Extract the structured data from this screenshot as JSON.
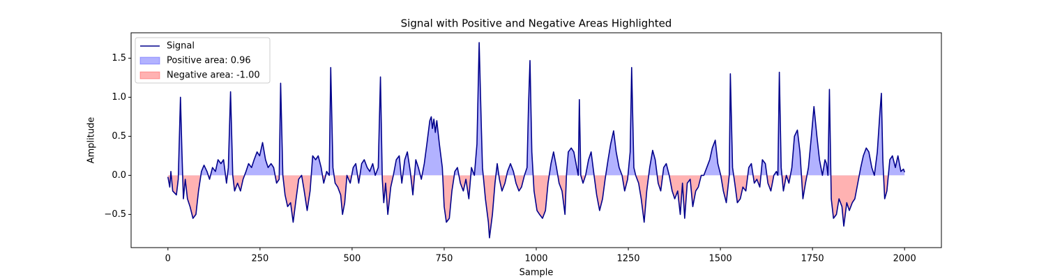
{
  "chart_data": {
    "type": "area_line",
    "title": "Signal with Positive and Negative Areas Highlighted",
    "x_label": "Sample",
    "y_label": "Amplitude",
    "x": [
      0,
      5,
      8,
      13,
      23,
      28,
      34,
      38,
      42,
      47,
      53,
      60,
      68,
      76,
      83,
      91,
      98,
      106,
      113,
      121,
      129,
      136,
      144,
      151,
      159,
      164,
      170,
      176,
      181,
      189,
      197,
      204,
      212,
      219,
      227,
      234,
      242,
      249,
      257,
      265,
      272,
      280,
      287,
      295,
      302,
      306,
      312,
      318,
      325,
      333,
      340,
      348,
      355,
      363,
      370,
      378,
      386,
      393,
      401,
      408,
      416,
      423,
      431,
      438,
      442,
      448,
      454,
      461,
      469,
      474,
      480,
      486,
      495,
      503,
      510,
      518,
      526,
      533,
      541,
      548,
      556,
      563,
      571,
      577,
      582,
      586,
      591,
      597,
      605,
      612,
      620,
      628,
      635,
      643,
      650,
      658,
      665,
      673,
      680,
      688,
      696,
      703,
      711,
      715,
      718,
      722,
      726,
      730,
      737,
      745,
      750,
      756,
      764,
      771,
      779,
      786,
      794,
      802,
      809,
      817,
      824,
      832,
      839,
      845,
      851,
      854,
      862,
      870,
      873,
      881,
      888,
      894,
      900,
      907,
      915,
      922,
      930,
      938,
      945,
      953,
      960,
      968,
      975,
      979,
      983,
      988,
      994,
      1002,
      1009,
      1017,
      1025,
      1032,
      1040,
      1047,
      1055,
      1062,
      1070,
      1078,
      1082,
      1087,
      1095,
      1102,
      1110,
      1114,
      1117,
      1121,
      1127,
      1134,
      1142,
      1149,
      1157,
      1164,
      1172,
      1180,
      1187,
      1195,
      1202,
      1210,
      1217,
      1225,
      1233,
      1240,
      1248,
      1255,
      1259,
      1265,
      1270,
      1278,
      1285,
      1293,
      1300,
      1308,
      1316,
      1323,
      1331,
      1338,
      1346,
      1353,
      1361,
      1369,
      1376,
      1384,
      1391,
      1397,
      1403,
      1410,
      1418,
      1425,
      1433,
      1440,
      1448,
      1455,
      1463,
      1471,
      1478,
      1486,
      1493,
      1501,
      1508,
      1516,
      1524,
      1527,
      1533,
      1539,
      1546,
      1554,
      1561,
      1569,
      1577,
      1584,
      1592,
      1599,
      1607,
      1614,
      1622,
      1629,
      1637,
      1645,
      1652,
      1656,
      1660,
      1665,
      1671,
      1679,
      1686,
      1694,
      1701,
      1709,
      1716,
      1720,
      1724,
      1731,
      1739,
      1747,
      1754,
      1762,
      1769,
      1777,
      1784,
      1788,
      1792,
      1796,
      1801,
      1807,
      1815,
      1822,
      1830,
      1835,
      1843,
      1850,
      1858,
      1865,
      1873,
      1881,
      1888,
      1896,
      1903,
      1911,
      1918,
      1926,
      1933,
      1937,
      1941,
      1946,
      1952,
      1960,
      1967,
      1975,
      1982,
      1990,
      1997,
      2000
    ],
    "series": [
      {
        "name": "Signal",
        "color": "#00008b",
        "values": [
          -0.02,
          -0.15,
          0.05,
          -0.2,
          -0.25,
          -0.05,
          1.0,
          0.3,
          -0.3,
          -0.05,
          -0.3,
          -0.4,
          -0.55,
          -0.5,
          -0.2,
          0.05,
          0.13,
          0.05,
          -0.05,
          0.1,
          0.05,
          0.2,
          0.15,
          0.2,
          -0.1,
          0.1,
          1.07,
          0.0,
          -0.2,
          -0.1,
          -0.2,
          -0.05,
          0.05,
          0.15,
          0.1,
          0.2,
          0.3,
          0.25,
          0.42,
          0.2,
          0.1,
          0.15,
          0.1,
          -0.1,
          -0.05,
          1.18,
          0.0,
          -0.25,
          -0.4,
          -0.35,
          -0.6,
          -0.3,
          -0.05,
          0.0,
          -0.2,
          -0.45,
          -0.2,
          0.25,
          0.2,
          0.25,
          0.1,
          -0.1,
          0.05,
          0.0,
          1.38,
          0.1,
          -0.1,
          -0.15,
          -0.25,
          -0.5,
          -0.35,
          0.0,
          -0.1,
          0.1,
          0.15,
          -0.1,
          0.15,
          0.2,
          0.1,
          0.05,
          0.15,
          0.0,
          0.1,
          1.26,
          -0.05,
          -0.35,
          -0.1,
          -0.5,
          -0.15,
          0.0,
          0.2,
          0.25,
          -0.1,
          0.2,
          0.3,
          0.05,
          -0.25,
          0.2,
          0.1,
          -0.05,
          0.15,
          0.4,
          0.7,
          0.75,
          0.6,
          0.72,
          0.55,
          0.7,
          0.4,
          0.1,
          -0.4,
          -0.6,
          -0.55,
          -0.2,
          0.05,
          0.1,
          -0.1,
          -0.2,
          -0.05,
          -0.3,
          0.1,
          0.0,
          0.4,
          1.7,
          0.6,
          0.1,
          -0.3,
          -0.6,
          -0.8,
          -0.5,
          -0.1,
          0.15,
          -0.05,
          -0.2,
          -0.1,
          0.05,
          0.15,
          0.05,
          -0.1,
          -0.2,
          -0.15,
          0.0,
          0.1,
          0.9,
          1.47,
          0.3,
          -0.2,
          -0.45,
          -0.5,
          -0.55,
          -0.45,
          -0.1,
          0.15,
          0.3,
          0.1,
          -0.1,
          -0.2,
          -0.5,
          0.0,
          0.3,
          0.35,
          0.3,
          0.1,
          0.0,
          0.97,
          0.0,
          -0.1,
          0.0,
          0.2,
          0.3,
          0.0,
          -0.25,
          -0.45,
          -0.3,
          -0.05,
          0.2,
          0.4,
          0.57,
          0.3,
          0.1,
          0.0,
          -0.2,
          -0.05,
          0.3,
          1.38,
          0.1,
          0.0,
          -0.1,
          -0.3,
          -0.6,
          -0.2,
          0.1,
          0.32,
          0.2,
          -0.1,
          -0.2,
          0.1,
          0.15,
          0.0,
          -0.2,
          -0.3,
          -0.2,
          -0.5,
          -0.1,
          -0.55,
          -0.1,
          -0.05,
          -0.4,
          -0.2,
          -0.15,
          0.0,
          0.0,
          0.1,
          0.2,
          0.35,
          0.45,
          0.15,
          0.0,
          -0.2,
          -0.35,
          0.0,
          1.3,
          0.1,
          -0.1,
          -0.35,
          -0.3,
          -0.15,
          -0.2,
          0.1,
          0.15,
          -0.1,
          -0.05,
          -0.15,
          0.2,
          0.15,
          -0.1,
          -0.2,
          0.0,
          0.05,
          0.0,
          1.32,
          0.1,
          -0.2,
          0.0,
          -0.1,
          0.1,
          0.5,
          0.58,
          0.3,
          0.0,
          -0.3,
          -0.1,
          0.1,
          0.5,
          0.88,
          0.5,
          0.2,
          0.0,
          0.2,
          0.15,
          0.0,
          1.1,
          -0.3,
          -0.55,
          -0.5,
          -0.3,
          -0.4,
          -0.65,
          -0.35,
          -0.45,
          -0.35,
          -0.3,
          -0.1,
          0.1,
          0.25,
          0.35,
          0.3,
          0.1,
          0.0,
          0.3,
          0.8,
          1.05,
          0.2,
          -0.3,
          -0.2,
          0.2,
          0.25,
          0.1,
          0.25,
          0.05,
          0.08,
          0.04
        ]
      }
    ],
    "areas": [
      {
        "name": "Positive area: 0.96",
        "color": "#0000ff"
      },
      {
        "name": "Negative area: -1.00",
        "color": "#ff0000"
      }
    ],
    "xlim": [
      -100,
      2100
    ],
    "xticks": [
      0,
      250,
      500,
      750,
      1000,
      1250,
      1500,
      1750,
      2000
    ],
    "ylim": [
      -0.925,
      1.825
    ],
    "yticks": [
      {
        "value": -0.5,
        "label": "−0.5"
      },
      {
        "value": 0,
        "label": "0.0"
      },
      {
        "value": 0.5,
        "label": "0.5"
      },
      {
        "value": 1,
        "label": "1.0"
      },
      {
        "value": 1.5,
        "label": "1.5"
      }
    ],
    "legend": "upper left"
  }
}
